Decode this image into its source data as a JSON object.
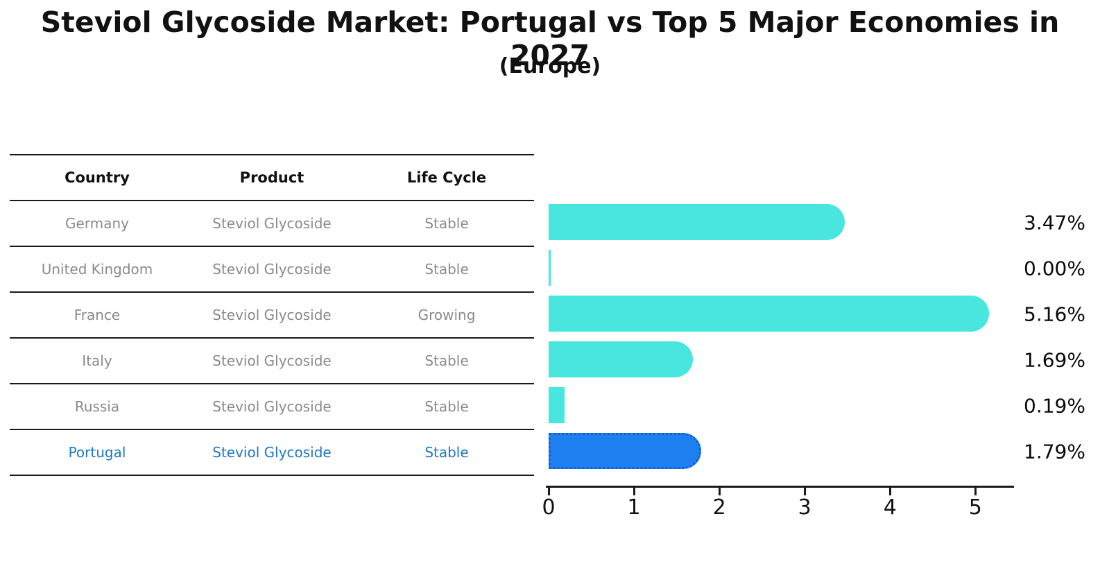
{
  "title": "Steviol Glycoside Market: Portugal vs Top 5 Major Economies in 2027",
  "subtitle": "(Europe)",
  "table": {
    "headers": [
      "Country",
      "Product",
      "Life Cycle"
    ],
    "rows": [
      {
        "country": "Germany",
        "product": "Steviol Glycoside",
        "life_cycle": "Stable",
        "highlight": false
      },
      {
        "country": "United Kingdom",
        "product": "Steviol Glycoside",
        "life_cycle": "Stable",
        "highlight": false
      },
      {
        "country": "France",
        "product": "Steviol Glycoside",
        "life_cycle": "Growing",
        "highlight": false
      },
      {
        "country": "Italy",
        "product": "Steviol Glycoside",
        "life_cycle": "Stable",
        "highlight": false
      },
      {
        "country": "Russia",
        "product": "Steviol Glycoside",
        "life_cycle": "Stable",
        "highlight": false
      },
      {
        "country": "Portugal",
        "product": "Steviol Glycoside",
        "life_cycle": "Stable",
        "highlight": true
      }
    ]
  },
  "chart_data": {
    "type": "bar",
    "orientation": "horizontal",
    "title": "Steviol Glycoside Market: Portugal vs Top 5 Major Economies in 2027 (Europe)",
    "categories": [
      "Germany",
      "United Kingdom",
      "France",
      "Italy",
      "Russia",
      "Portugal"
    ],
    "values": [
      3.47,
      0.0,
      5.16,
      1.69,
      0.19,
      1.79
    ],
    "value_labels": [
      "3.47%",
      "0.00%",
      "5.16%",
      "1.69%",
      "0.19%",
      "1.79%"
    ],
    "xticks": [
      0,
      1,
      2,
      3,
      4,
      5
    ],
    "xlim": [
      0,
      5.42
    ],
    "grid": false,
    "legend": "none",
    "highlight_category": "Portugal",
    "colors": {
      "bar": "#49e6df",
      "highlight_bar": "#1e80f0",
      "highlight_border": "#155fd0",
      "highlight_text": "#1b77c8",
      "table_text": "#8a8a8a",
      "header_text": "#111111",
      "axis": "#1a1a1a"
    }
  }
}
